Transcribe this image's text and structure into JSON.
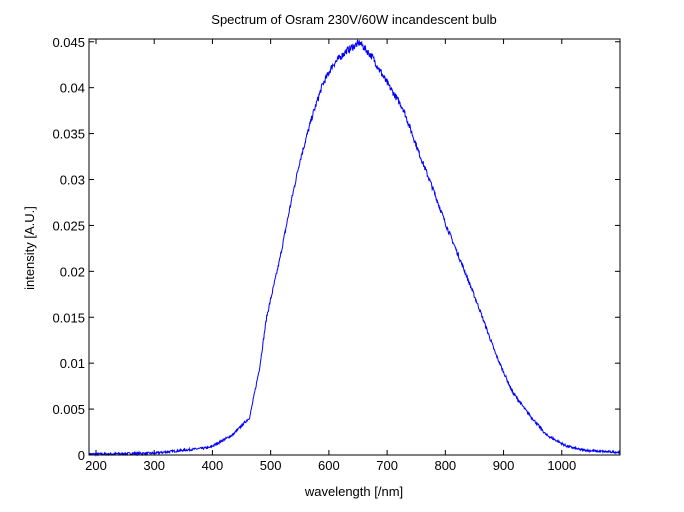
{
  "chart_data": {
    "type": "line",
    "title": "Spectrum of Osram 230V/60W incandescent bulb",
    "xlabel": "wavelength [/nm]",
    "ylabel": "intensity [A.U.]",
    "xlim": [
      188,
      1100
    ],
    "ylim": [
      0,
      0.0453
    ],
    "xticks": [
      200,
      300,
      400,
      500,
      600,
      700,
      800,
      900,
      1000
    ],
    "xtick_labels": [
      "200",
      "300",
      "400",
      "500",
      "600",
      "700",
      "800",
      "900",
      "1000"
    ],
    "yticks": [
      0,
      0.005,
      0.01,
      0.015,
      0.02,
      0.025,
      0.03,
      0.035,
      0.04,
      0.045
    ],
    "ytick_labels": [
      "0",
      "0.005",
      "0.01",
      "0.015",
      "0.02",
      "0.025",
      "0.03",
      "0.035",
      "0.04",
      "0.045"
    ],
    "grid": false,
    "series": [
      {
        "name": "spectrum",
        "color": "#0000ff",
        "x": [
          188,
          200,
          300,
          395,
          435,
          464,
          481,
          493,
          515,
          533,
          550,
          572,
          589,
          607,
          630,
          653,
          675,
          698,
          727,
          756,
          778,
          801,
          829,
          858,
          887,
          915,
          939,
          973,
          1007,
          1030,
          1060,
          1100
        ],
        "y": [
          0.0001,
          0.0001,
          0.0002,
          0.0008,
          0.0022,
          0.0041,
          0.0095,
          0.015,
          0.0211,
          0.0269,
          0.032,
          0.037,
          0.0403,
          0.0425,
          0.044,
          0.0449,
          0.0433,
          0.0407,
          0.0378,
          0.0327,
          0.0291,
          0.0251,
          0.0207,
          0.016,
          0.0109,
          0.0069,
          0.0048,
          0.0022,
          0.001,
          0.0006,
          0.0004,
          0.0003
        ]
      }
    ]
  }
}
